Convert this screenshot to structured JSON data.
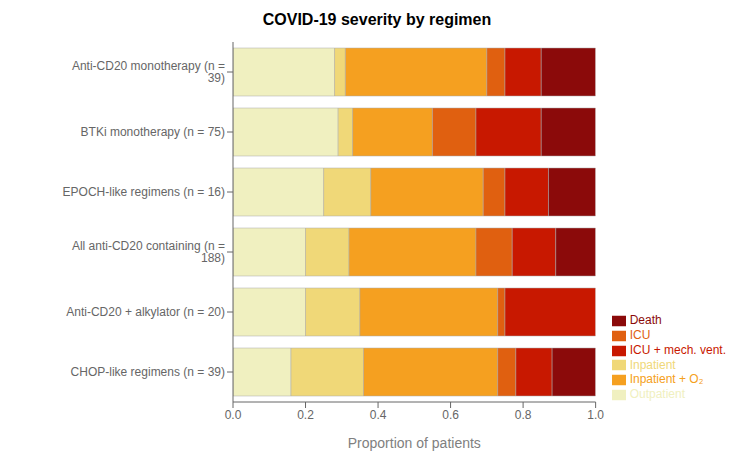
{
  "chart_data": {
    "type": "bar",
    "orientation": "horizontal",
    "stacked": true,
    "title": "COVID-19 severity by regimen",
    "xlabel": "Proportion of patients",
    "categories": [
      "Anti-CD20 monotherapy (n = 39)",
      "BTKi monotherapy (n = 75)",
      "EPOCH-like regimens (n = 16)",
      "All anti-CD20 containing (n = 188)",
      "Anti-CD20 + alkylator (n = 20)",
      "CHOP-like regimens (n = 39)"
    ],
    "series": [
      {
        "name": "Outpatient",
        "color": "#f0f0c0",
        "values": [
          0.28,
          0.29,
          0.25,
          0.2,
          0.2,
          0.16
        ]
      },
      {
        "name": "Inpatient",
        "color": "#f0d878",
        "values": [
          0.03,
          0.04,
          0.13,
          0.12,
          0.15,
          0.2
        ]
      },
      {
        "name": "Inpatient + O₂",
        "color": "#f5a020",
        "values": [
          0.39,
          0.22,
          0.31,
          0.35,
          0.38,
          0.37
        ]
      },
      {
        "name": "ICU",
        "color": "#e06010",
        "values": [
          0.05,
          0.12,
          0.06,
          0.1,
          0.02,
          0.05
        ]
      },
      {
        "name": "ICU + mech. vent.",
        "color": "#c81800",
        "values": [
          0.1,
          0.18,
          0.12,
          0.12,
          0.25,
          0.1
        ]
      },
      {
        "name": "Death",
        "color": "#8b0a0a",
        "values": [
          0.15,
          0.15,
          0.13,
          0.11,
          0.0,
          0.12
        ]
      }
    ],
    "xlim": [
      0.0,
      1.0
    ],
    "xticks": [
      {
        "value": 0,
        "label": "0.0"
      },
      0.2,
      0.4,
      0.6,
      0.8,
      {
        "value": 1,
        "label": "1.0"
      }
    ],
    "grid": false,
    "legend": "lower right"
  }
}
